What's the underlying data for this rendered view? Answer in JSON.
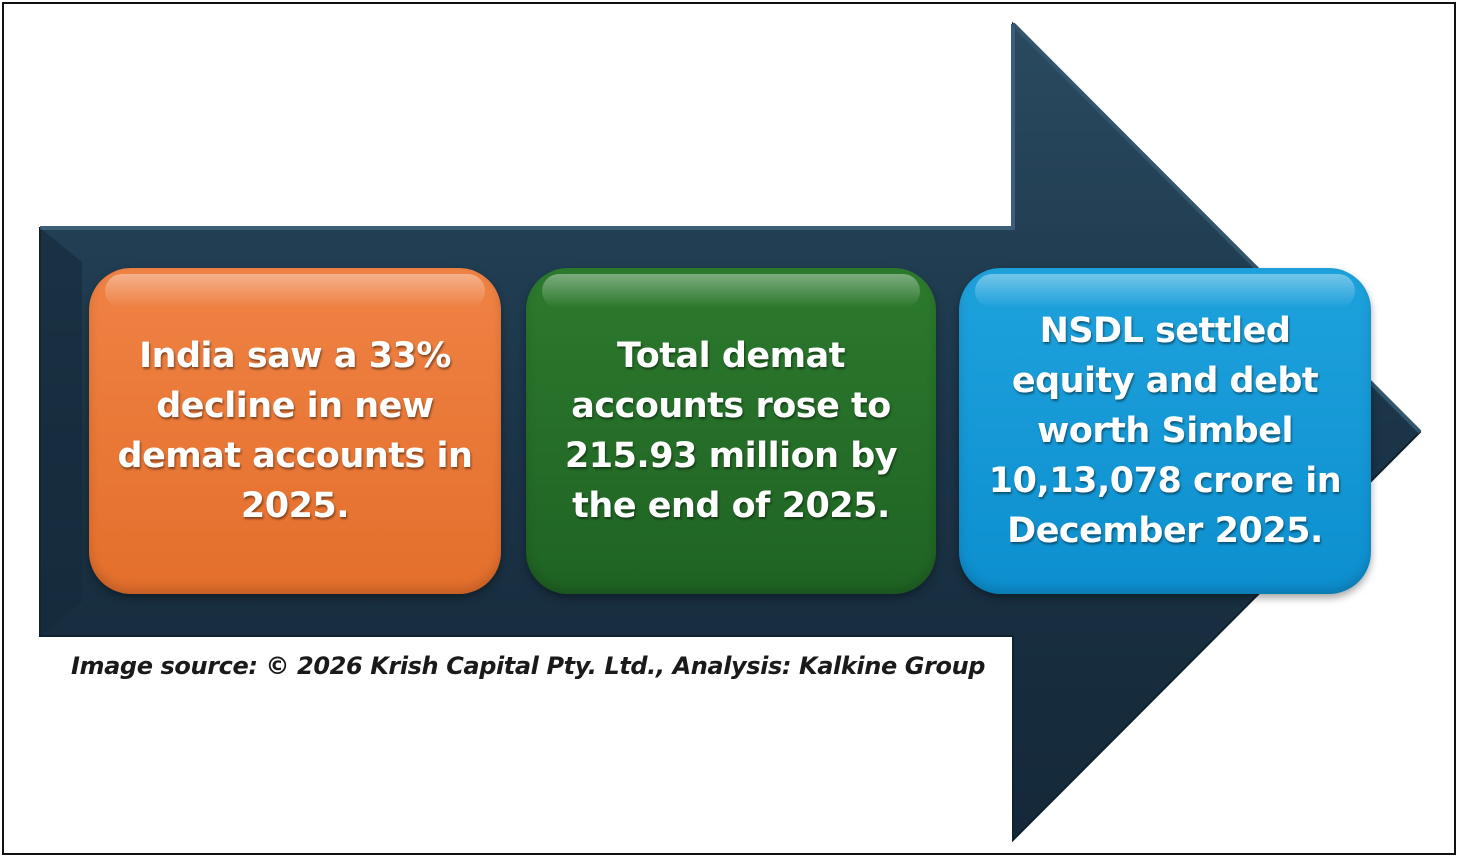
{
  "colors": {
    "arrow": "#1b3447",
    "box_orange": "#e9773a",
    "box_green": "#267128",
    "box_blue": "#1599d6"
  },
  "boxes": [
    {
      "text": "India saw a 33%\ndecline in new\ndemat accounts in\n2025."
    },
    {
      "text": "Total demat\naccounts rose to\n215.93 million by\nthe end of 2025."
    },
    {
      "text": "NSDL settled\nequity and debt\nworth Simbel\n10,13,078 crore in\nDecember 2025."
    }
  ],
  "source": "Image source: © 2026 Krish Capital Pty. Ltd., Analysis: Kalkine Group"
}
